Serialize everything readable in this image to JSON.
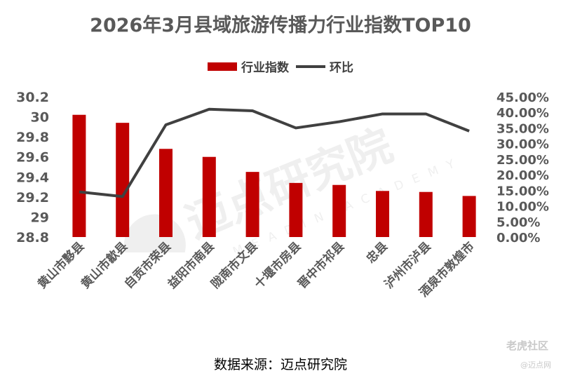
{
  "chart_data": {
    "type": "bar",
    "title": "2026年3月县域旅游传播力行业指数TOP10",
    "categories": [
      "黄山市黟县",
      "黄山市歙县",
      "自贡市荣县",
      "益阳市南县",
      "陇南市文县",
      "十堰市房县",
      "晋中市祁县",
      "忠县",
      "泸州市泸县",
      "酒泉市敦煌市"
    ],
    "series": [
      {
        "name": "行业指数",
        "kind": "bar",
        "axis": "left",
        "color": "#c00000",
        "values": [
          30.02,
          29.94,
          29.68,
          29.6,
          29.45,
          29.34,
          29.32,
          29.26,
          29.25,
          29.21
        ]
      },
      {
        "name": "环比",
        "kind": "line",
        "axis": "right",
        "color": "#404040",
        "values": [
          0.145,
          0.13,
          0.36,
          0.41,
          0.405,
          0.35,
          0.37,
          0.395,
          0.395,
          0.34
        ]
      }
    ],
    "y_left": {
      "min": 28.8,
      "max": 30.2,
      "ticks": [
        "28.8",
        "29",
        "29.2",
        "29.4",
        "29.6",
        "29.8",
        "30",
        "30.2"
      ]
    },
    "y_right": {
      "min": 0,
      "max": 0.45,
      "ticks": [
        "0.00%",
        "5.00%",
        "10.00%",
        "15.00%",
        "20.00%",
        "25.00%",
        "30.00%",
        "35.00%",
        "40.00%",
        "45.00%"
      ]
    },
    "legend_position": "top-center",
    "grid": false
  },
  "source": "数据来源：迈点研究院",
  "watermark": {
    "text": "迈点研究院",
    "subtext": "MEADIN ACADEMY"
  },
  "brand": {
    "text": "老虎社区",
    "sub": "@迈点网"
  }
}
